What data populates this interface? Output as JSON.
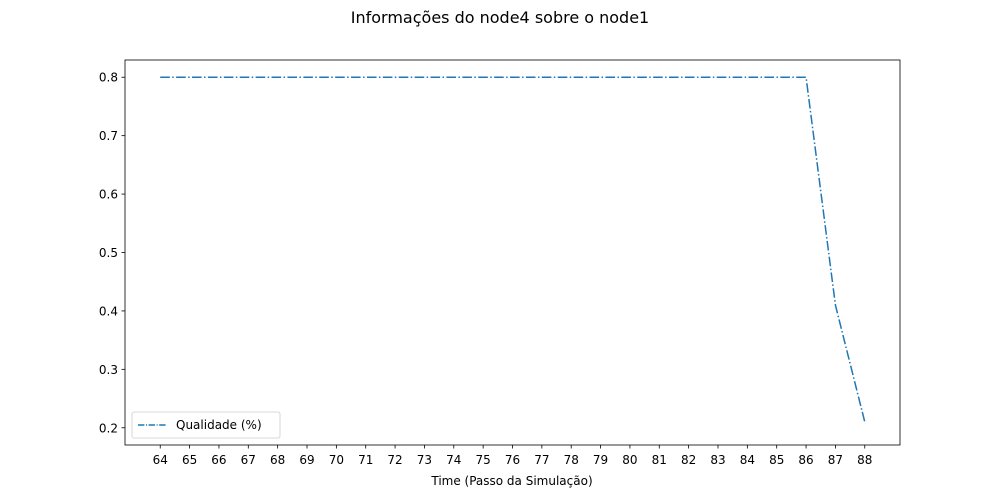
{
  "chart_data": {
    "type": "line",
    "title": "Informações do node4 sobre o node1",
    "xlabel": "Time (Passo da Simulação)",
    "ylabel": "",
    "x": [
      64,
      65,
      66,
      67,
      68,
      69,
      70,
      71,
      72,
      73,
      74,
      75,
      76,
      77,
      78,
      79,
      80,
      81,
      82,
      83,
      84,
      85,
      86,
      87,
      88
    ],
    "series": [
      {
        "name": "Qualidade (%)",
        "color": "#1f77b4",
        "linestyle": "dashdot",
        "values": [
          0.8,
          0.8,
          0.8,
          0.8,
          0.8,
          0.8,
          0.8,
          0.8,
          0.8,
          0.8,
          0.8,
          0.8,
          0.8,
          0.8,
          0.8,
          0.8,
          0.8,
          0.8,
          0.8,
          0.8,
          0.8,
          0.8,
          0.8,
          0.41,
          0.21
        ]
      }
    ],
    "xticks": [
      "64",
      "65",
      "66",
      "67",
      "68",
      "69",
      "70",
      "71",
      "72",
      "73",
      "74",
      "75",
      "76",
      "77",
      "78",
      "79",
      "80",
      "81",
      "82",
      "83",
      "84",
      "85",
      "86",
      "87",
      "88"
    ],
    "yticks": [
      0.2,
      0.3,
      0.4,
      0.5,
      0.6,
      0.7,
      0.8
    ],
    "ytick_labels": [
      "0.2",
      "0.3",
      "0.4",
      "0.5",
      "0.6",
      "0.7",
      "0.8"
    ],
    "xlim": [
      62.8,
      89.2
    ],
    "ylim": [
      0.1705,
      0.8295
    ],
    "grid": false,
    "legend_position": "lower-left"
  }
}
